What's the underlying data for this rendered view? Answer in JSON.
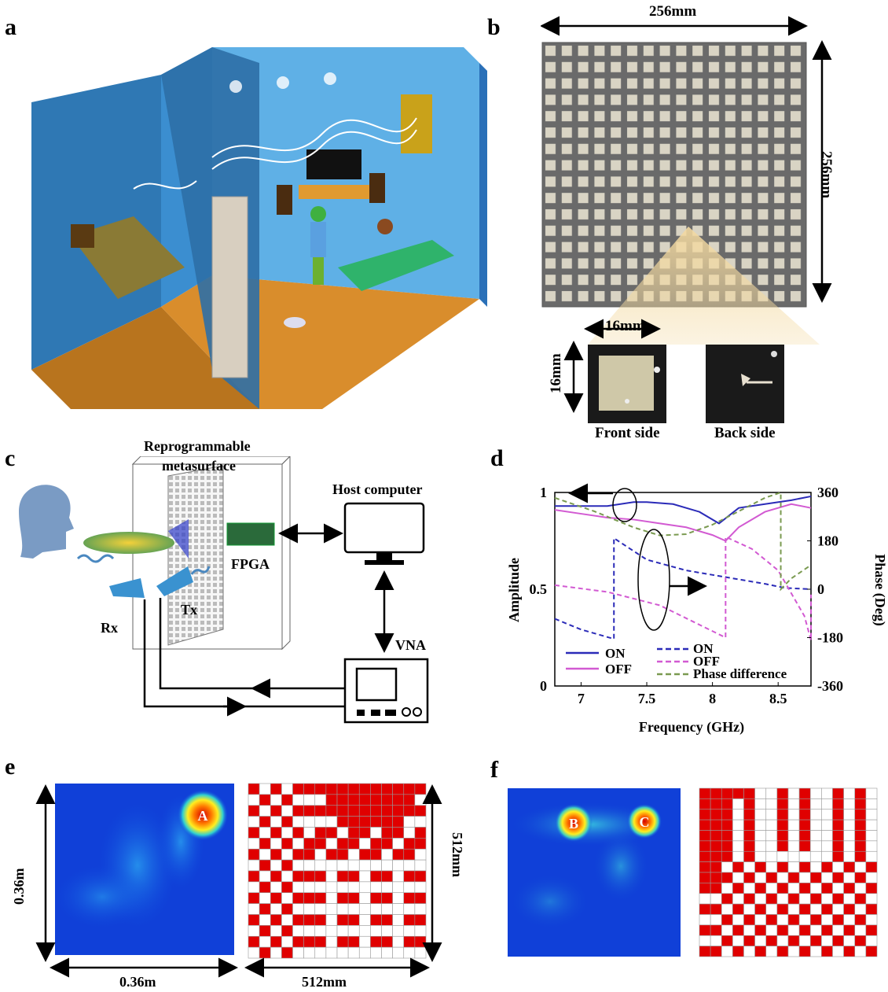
{
  "panels": {
    "a": {
      "label": "a"
    },
    "b": {
      "label": "b",
      "width": "256mm",
      "height": "256mm",
      "cell_w": "16mm",
      "cell_h": "16mm",
      "front": "Front side",
      "back": "Back side"
    },
    "c": {
      "label": "c",
      "metasurface_line1": "Reprogrammable",
      "metasurface_line2": "metasurface",
      "host": "Host computer",
      "fpga": "FPGA",
      "vna": "VNA",
      "rx": "Rx",
      "tx": "Tx"
    },
    "d": {
      "label": "d"
    },
    "e": {
      "label": "e",
      "spot": "A",
      "x_dim": "0.36m",
      "y_dim": "0.36m",
      "pattern_x_dim": "512mm",
      "pattern_y_dim": "512mm"
    },
    "f": {
      "label": "f",
      "spot_b": "B",
      "spot_c": "C"
    }
  },
  "colors": {
    "on": "#2b2bb8",
    "off": "#d25ad2",
    "phase_diff": "#7a9a50",
    "pattern_red": "#e00000"
  },
  "chart_data": {
    "type": "line",
    "xlabel": "Frequency (GHz)",
    "ylabel_left": "Amplitude",
    "ylabel_right": "Phase (Deg)",
    "xlim": [
      6.8,
      8.75
    ],
    "ylim_left": [
      0,
      1
    ],
    "ylim_right": [
      -360,
      360
    ],
    "xticks": [
      "7",
      "7.5",
      "8",
      "8.5"
    ],
    "yticks_left": [
      "0",
      "0.5",
      "1"
    ],
    "yticks_right": [
      "-360",
      "-180",
      "0",
      "180",
      "360"
    ],
    "legend": [
      "ON",
      "OFF",
      "ON",
      "OFF",
      "Phase difference"
    ],
    "series": [
      {
        "name": "ON",
        "axis": "left",
        "style": "solid",
        "color": "#2b2bb8",
        "x": [
          6.8,
          7.0,
          7.2,
          7.4,
          7.5,
          7.7,
          7.9,
          8.05,
          8.2,
          8.4,
          8.6,
          8.75
        ],
        "y": [
          0.93,
          0.93,
          0.93,
          0.95,
          0.95,
          0.94,
          0.9,
          0.84,
          0.92,
          0.94,
          0.96,
          0.98
        ]
      },
      {
        "name": "OFF",
        "axis": "left",
        "style": "solid",
        "color": "#d25ad2",
        "x": [
          6.8,
          7.0,
          7.2,
          7.4,
          7.6,
          7.8,
          8.0,
          8.1,
          8.2,
          8.4,
          8.6,
          8.75
        ],
        "y": [
          0.91,
          0.89,
          0.87,
          0.86,
          0.84,
          0.82,
          0.78,
          0.75,
          0.82,
          0.9,
          0.94,
          0.92
        ]
      },
      {
        "name": "ON",
        "axis": "right",
        "style": "dashed",
        "color": "#2b2bb8",
        "x": [
          6.8,
          7.0,
          7.25,
          7.25,
          7.5,
          7.8,
          8.1,
          8.4,
          8.55,
          8.75
        ],
        "y": [
          -110,
          -150,
          -185,
          190,
          110,
          70,
          45,
          20,
          5,
          0
        ]
      },
      {
        "name": "OFF",
        "axis": "right",
        "style": "dashed",
        "color": "#d25ad2",
        "x": [
          6.8,
          7.2,
          7.6,
          8.1,
          8.1,
          8.3,
          8.5,
          8.7,
          8.75,
          8.75
        ],
        "y": [
          15,
          -10,
          -60,
          -180,
          195,
          150,
          70,
          -100,
          -190,
          -20
        ]
      },
      {
        "name": "Phase difference",
        "axis": "right",
        "style": "dashed",
        "color": "#7a9a50",
        "x": [
          6.8,
          7.1,
          7.4,
          7.6,
          7.8,
          8.0,
          8.2,
          8.4,
          8.52,
          8.52,
          8.6,
          8.75
        ],
        "y": [
          340,
          290,
          230,
          200,
          205,
          240,
          290,
          340,
          360,
          0,
          40,
          90
        ]
      }
    ]
  }
}
